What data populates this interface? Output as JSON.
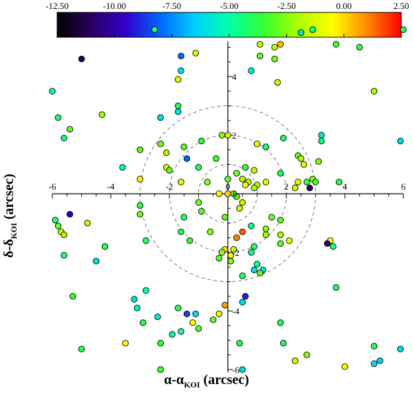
{
  "chart_data": {
    "type": "scatter",
    "xlabel_main": "α-α",
    "xlabel_sub": "KOI",
    "xlabel_unit": " (arcsec)",
    "ylabel_main": "δ-δ",
    "ylabel_sub": "KOI",
    "ylabel_unit": " (arcsec)",
    "xlim": [
      -6,
      6
    ],
    "ylim": [
      -6,
      6
    ],
    "x_ticks": [
      -6,
      -4,
      -2,
      0,
      2,
      4,
      6
    ],
    "y_ticks": [
      -6,
      -4,
      -2,
      0,
      2,
      4
    ],
    "circle_radii": [
      1,
      2,
      3
    ],
    "colorbar": {
      "range": [
        -12.5,
        2.5
      ],
      "tick_labels": [
        "-12.50",
        "-10.00",
        "-7.50",
        "-5.00",
        "-2.50",
        "0.00",
        "2.50"
      ],
      "colors": [
        "#000000",
        "#2a0060",
        "#3300cc",
        "#0066ff",
        "#00d0ff",
        "#00ffaa",
        "#33ff33",
        "#aaff00",
        "#ffff00",
        "#ff8800",
        "#ff0000"
      ]
    },
    "points": [
      {
        "x": 0.0,
        "y": 0.0,
        "c": 0.0
      },
      {
        "x": -2.5,
        "y": 5.6,
        "c": -4.2
      },
      {
        "x": 2.5,
        "y": 5.5,
        "c": -5.6
      },
      {
        "x": 2.9,
        "y": 5.6,
        "c": -4.3
      },
      {
        "x": 6.0,
        "y": 5.6,
        "c": -3.8
      },
      {
        "x": 1.1,
        "y": 5.1,
        "c": -1.5
      },
      {
        "x": 1.6,
        "y": 5.0,
        "c": -1.8
      },
      {
        "x": 1.8,
        "y": 5.1,
        "c": 0.3
      },
      {
        "x": 3.7,
        "y": 5.1,
        "c": -3.2
      },
      {
        "x": 4.5,
        "y": 5.0,
        "c": -3.6
      },
      {
        "x": -1.1,
        "y": 4.8,
        "c": -1.3
      },
      {
        "x": -1.6,
        "y": 4.7,
        "c": -8.0
      },
      {
        "x": -5.0,
        "y": 4.6,
        "c": -11.0
      },
      {
        "x": 1.1,
        "y": 4.7,
        "c": -3.0
      },
      {
        "x": 1.6,
        "y": 4.6,
        "c": -2.6
      },
      {
        "x": -1.6,
        "y": 4.2,
        "c": -6.0
      },
      {
        "x": 0.8,
        "y": 4.2,
        "c": -5.5
      },
      {
        "x": -1.7,
        "y": 3.9,
        "c": -1.0
      },
      {
        "x": 1.7,
        "y": 3.8,
        "c": -1.5
      },
      {
        "x": -6.0,
        "y": 3.5,
        "c": -5.0
      },
      {
        "x": 5.0,
        "y": 3.5,
        "c": -2.0
      },
      {
        "x": -1.7,
        "y": 3.0,
        "c": -4.0
      },
      {
        "x": -1.7,
        "y": 2.8,
        "c": -5.8
      },
      {
        "x": -2.3,
        "y": 2.6,
        "c": -6.0
      },
      {
        "x": -4.3,
        "y": 2.7,
        "c": -2.3
      },
      {
        "x": -5.8,
        "y": 2.6,
        "c": -4.2
      },
      {
        "x": -5.4,
        "y": 2.2,
        "c": -3.0
      },
      {
        "x": -5.6,
        "y": 1.9,
        "c": -4.5
      },
      {
        "x": 0.0,
        "y": 2.0,
        "c": -1.5
      },
      {
        "x": -0.2,
        "y": 2.0,
        "c": -2.5
      },
      {
        "x": -0.9,
        "y": 1.8,
        "c": -3.5
      },
      {
        "x": 3.2,
        "y": 2.0,
        "c": -5.8
      },
      {
        "x": 1.9,
        "y": 1.9,
        "c": -4.0
      },
      {
        "x": 1.0,
        "y": 1.7,
        "c": -1.0
      },
      {
        "x": 1.3,
        "y": 1.6,
        "c": -4.5
      },
      {
        "x": 5.9,
        "y": 1.8,
        "c": -6.0
      },
      {
        "x": -2.3,
        "y": 1.7,
        "c": -2.8
      },
      {
        "x": 3.2,
        "y": 1.8,
        "c": -4.5
      },
      {
        "x": -1.5,
        "y": 1.6,
        "c": -3.0
      },
      {
        "x": -3.0,
        "y": 1.5,
        "c": -3.0
      },
      {
        "x": -2.1,
        "y": 1.4,
        "c": -1.8
      },
      {
        "x": -1.4,
        "y": 1.2,
        "c": -8.0
      },
      {
        "x": -0.4,
        "y": 1.2,
        "c": -3.5
      },
      {
        "x": 2.4,
        "y": 1.3,
        "c": -3.0
      },
      {
        "x": 2.5,
        "y": 1.2,
        "c": -2.0
      },
      {
        "x": 3.1,
        "y": 1.1,
        "c": -2.5
      },
      {
        "x": 2.6,
        "y": 1.0,
        "c": -0.8
      },
      {
        "x": -3.6,
        "y": 0.9,
        "c": -4.8
      },
      {
        "x": -2.1,
        "y": 0.9,
        "c": -1.2
      },
      {
        "x": -1.0,
        "y": 0.9,
        "c": -4.0
      },
      {
        "x": 0.6,
        "y": 0.9,
        "c": -3.5
      },
      {
        "x": 0.9,
        "y": 0.8,
        "c": -1.5
      },
      {
        "x": -2.0,
        "y": 0.8,
        "c": -3.0
      },
      {
        "x": 0.3,
        "y": 0.7,
        "c": -2.8
      },
      {
        "x": 1.8,
        "y": 0.7,
        "c": -4.0
      },
      {
        "x": 0.5,
        "y": 0.5,
        "c": -1.8
      },
      {
        "x": 0.7,
        "y": 0.4,
        "c": -2.0
      },
      {
        "x": -3.0,
        "y": 0.5,
        "c": -0.4
      },
      {
        "x": -1.6,
        "y": 0.4,
        "c": -1.0
      },
      {
        "x": -0.7,
        "y": 0.4,
        "c": -2.5
      },
      {
        "x": 0.0,
        "y": 0.5,
        "c": -3.0
      },
      {
        "x": 0.6,
        "y": 0.3,
        "c": -0.5
      },
      {
        "x": 1.0,
        "y": 0.3,
        "c": -1.5
      },
      {
        "x": 1.3,
        "y": 0.4,
        "c": -1.0
      },
      {
        "x": 2.4,
        "y": 0.4,
        "c": -0.8
      },
      {
        "x": 2.7,
        "y": 0.4,
        "c": -3.5
      },
      {
        "x": 2.9,
        "y": 0.5,
        "c": -2.5
      },
      {
        "x": 3.0,
        "y": 0.4,
        "c": -3.2
      },
      {
        "x": 3.8,
        "y": 0.4,
        "c": -3.8
      },
      {
        "x": 0.9,
        "y": 0.2,
        "c": -2.0
      },
      {
        "x": 2.3,
        "y": 0.2,
        "c": -1.5
      },
      {
        "x": 2.8,
        "y": 0.2,
        "c": -11.0
      },
      {
        "x": -0.3,
        "y": 0.0,
        "c": -0.5
      },
      {
        "x": 0.2,
        "y": 0.0,
        "c": -2.5
      },
      {
        "x": 0.3,
        "y": -0.1,
        "c": -2.8
      },
      {
        "x": 0.5,
        "y": -0.3,
        "c": -1.6
      },
      {
        "x": -3.0,
        "y": -0.4,
        "c": -3.5
      },
      {
        "x": -1.0,
        "y": -0.3,
        "c": -2.8
      },
      {
        "x": 0.4,
        "y": -0.5,
        "c": -1.5
      },
      {
        "x": -0.9,
        "y": -0.6,
        "c": -3.0
      },
      {
        "x": -3.0,
        "y": -0.7,
        "c": -2.8
      },
      {
        "x": -1.5,
        "y": -0.8,
        "c": -4.0
      },
      {
        "x": 1.5,
        "y": -0.8,
        "c": -2.8
      },
      {
        "x": -0.1,
        "y": -0.8,
        "c": -3.0
      },
      {
        "x": 1.8,
        "y": -0.9,
        "c": -3.0
      },
      {
        "x": -5.9,
        "y": -0.9,
        "c": -4.0
      },
      {
        "x": -5.4,
        "y": -0.7,
        "c": -9.5
      },
      {
        "x": -4.8,
        "y": -1.0,
        "c": -1.5
      },
      {
        "x": 1.3,
        "y": -1.2,
        "c": -2.5
      },
      {
        "x": -5.8,
        "y": -1.1,
        "c": -3.0
      },
      {
        "x": 0.8,
        "y": -1.1,
        "c": -4.5
      },
      {
        "x": 1.3,
        "y": -1.4,
        "c": -2.0
      },
      {
        "x": -5.7,
        "y": -1.3,
        "c": -1.3
      },
      {
        "x": -5.6,
        "y": -1.4,
        "c": -2.0
      },
      {
        "x": -1.6,
        "y": -1.3,
        "c": -4.0
      },
      {
        "x": -0.6,
        "y": -1.3,
        "c": -2.5
      },
      {
        "x": 0.5,
        "y": -1.3,
        "c": 1.5
      },
      {
        "x": 0.3,
        "y": -1.5,
        "c": 1.0
      },
      {
        "x": -2.8,
        "y": -1.6,
        "c": -4.0
      },
      {
        "x": -1.3,
        "y": -1.6,
        "c": -3.5
      },
      {
        "x": 3.5,
        "y": -1.6,
        "c": -0.5
      },
      {
        "x": 2.1,
        "y": -1.6,
        "c": -1.0
      },
      {
        "x": 1.8,
        "y": -1.4,
        "c": -2.0
      },
      {
        "x": 3.6,
        "y": -1.8,
        "c": -4.5
      },
      {
        "x": 0.9,
        "y": -1.8,
        "c": -4.0
      },
      {
        "x": 1.8,
        "y": -1.7,
        "c": -3.0
      },
      {
        "x": 3.4,
        "y": -1.7,
        "c": -10.5
      },
      {
        "x": -4.2,
        "y": -1.8,
        "c": -4.0
      },
      {
        "x": -0.1,
        "y": -1.9,
        "c": 0.0
      },
      {
        "x": 0.2,
        "y": -1.9,
        "c": -1.5
      },
      {
        "x": 0.1,
        "y": -2.1,
        "c": -0.5
      },
      {
        "x": -5.6,
        "y": -2.1,
        "c": -4.0
      },
      {
        "x": -4.5,
        "y": -2.3,
        "c": -6.0
      },
      {
        "x": 0.8,
        "y": -2.0,
        "c": -4.5
      },
      {
        "x": -0.3,
        "y": -2.2,
        "c": -3.0
      },
      {
        "x": 0.1,
        "y": -2.3,
        "c": -2.5
      },
      {
        "x": -0.2,
        "y": -2.0,
        "c": -2.2
      },
      {
        "x": 1.0,
        "y": -2.4,
        "c": -4.5
      },
      {
        "x": 0.9,
        "y": -2.6,
        "c": -6.0
      },
      {
        "x": 1.2,
        "y": -2.6,
        "c": -5.5
      },
      {
        "x": 0.5,
        "y": -2.8,
        "c": -4.0
      },
      {
        "x": 1.1,
        "y": -2.7,
        "c": -3.0
      },
      {
        "x": -2.8,
        "y": -3.3,
        "c": -5.0
      },
      {
        "x": 3.7,
        "y": -3.2,
        "c": -4.0
      },
      {
        "x": -5.3,
        "y": -3.5,
        "c": -3.5
      },
      {
        "x": 0.6,
        "y": -3.5,
        "c": -9.0
      },
      {
        "x": -3.2,
        "y": -3.6,
        "c": -6.0
      },
      {
        "x": -3.1,
        "y": -3.9,
        "c": -5.5
      },
      {
        "x": 0.5,
        "y": -3.7,
        "c": -6.0
      },
      {
        "x": -1.7,
        "y": -3.9,
        "c": -4.0
      },
      {
        "x": -0.1,
        "y": -3.8,
        "c": 0.7
      },
      {
        "x": -2.4,
        "y": -4.2,
        "c": -5.5
      },
      {
        "x": -1.1,
        "y": -4.1,
        "c": -6.0
      },
      {
        "x": -1.4,
        "y": -4.1,
        "c": -8.5
      },
      {
        "x": -0.3,
        "y": -4.1,
        "c": -1.0
      },
      {
        "x": -2.9,
        "y": -4.4,
        "c": -4.0
      },
      {
        "x": -1.2,
        "y": -4.4,
        "c": -0.5
      },
      {
        "x": -0.5,
        "y": -4.3,
        "c": -3.0
      },
      {
        "x": 1.8,
        "y": -4.4,
        "c": -4.0
      },
      {
        "x": -1.9,
        "y": -4.8,
        "c": -5.2
      },
      {
        "x": -1.6,
        "y": -4.7,
        "c": -4.8
      },
      {
        "x": -1.0,
        "y": -4.6,
        "c": -3.0
      },
      {
        "x": 0.4,
        "y": -5.1,
        "c": -4.0
      },
      {
        "x": -3.5,
        "y": -5.1,
        "c": -0.5
      },
      {
        "x": -2.3,
        "y": -5.1,
        "c": -3.5
      },
      {
        "x": -5.0,
        "y": -5.3,
        "c": -4.0
      },
      {
        "x": 1.9,
        "y": -5.1,
        "c": -4.0
      },
      {
        "x": 5.9,
        "y": -5.3,
        "c": -6.0
      },
      {
        "x": 5.0,
        "y": -5.2,
        "c": -4.0
      },
      {
        "x": 5.0,
        "y": -5.8,
        "c": -6.0
      },
      {
        "x": 5.2,
        "y": -5.7,
        "c": -6.5
      },
      {
        "x": 2.3,
        "y": -5.7,
        "c": -1.2
      },
      {
        "x": 2.7,
        "y": -5.5,
        "c": -2.5
      },
      {
        "x": 4.0,
        "y": -5.9,
        "c": -0.5
      },
      {
        "x": 0.5,
        "y": -6.0,
        "c": -6.0
      },
      {
        "x": -2.3,
        "y": -6.0,
        "c": -3.5
      }
    ]
  }
}
